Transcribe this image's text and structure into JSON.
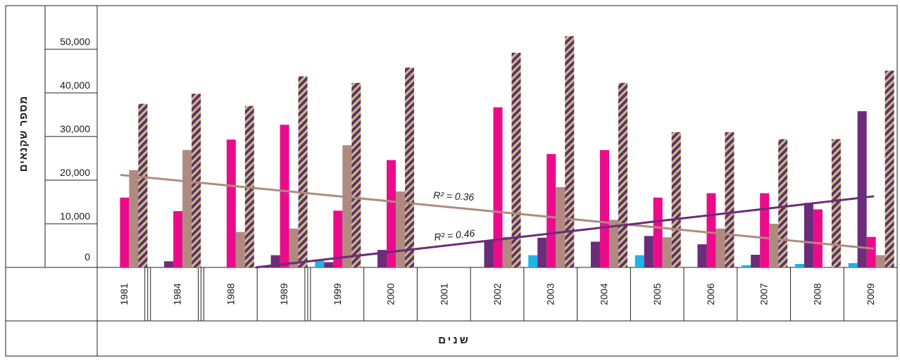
{
  "chart_data": {
    "type": "bar",
    "ylabel": "מספר שקנאים",
    "xlabel": "שנים",
    "y_ticks": [
      "0",
      "10,000",
      "20,000",
      "30,000",
      "40,000",
      "50,000"
    ],
    "ylim": [
      0,
      50000
    ],
    "grid": false,
    "categories": [
      "1981",
      "1984",
      "1988",
      "1989",
      "1999",
      "2000",
      "2001",
      "2002",
      "2003",
      "2004",
      "2005",
      "2006",
      "2007",
      "2008",
      "2009"
    ],
    "series": [
      {
        "color": "#1fb3e6",
        "pattern": "solid",
        "values": [
          0,
          0,
          0,
          0,
          1700,
          0,
          0,
          0,
          2800,
          0,
          2800,
          0,
          500,
          800,
          1000
        ]
      },
      {
        "color": "#6b2c79",
        "pattern": "solid",
        "values": [
          0,
          1400,
          0,
          2800,
          1200,
          4000,
          0,
          6000,
          6800,
          5900,
          7200,
          5300,
          2900,
          14800,
          35800
        ]
      },
      {
        "color": "#ec0b8b",
        "pattern": "solid",
        "values": [
          16000,
          12900,
          29300,
          32700,
          13000,
          24600,
          0,
          36700,
          26000,
          26900,
          16000,
          17000,
          17000,
          13300,
          7000
        ]
      },
      {
        "color": "#b08a80",
        "pattern": "solid",
        "values": [
          22300,
          26900,
          8100,
          8900,
          28000,
          17400,
          0,
          7000,
          18400,
          10900,
          6900,
          8900,
          10000,
          0,
          2800
        ]
      },
      {
        "color": "#7a2470",
        "color2": "#a9d37a",
        "pattern": "hatched",
        "values": [
          37500,
          39800,
          37000,
          43800,
          42300,
          45800,
          0,
          49200,
          53000,
          42300,
          31000,
          31000,
          29400,
          29400,
          45100
        ]
      }
    ],
    "trendlines": [
      {
        "color": "#b08a80",
        "from": [
          "1981",
          21200
        ],
        "to": [
          "2009",
          4300
        ],
        "label": "R² = 0.36"
      },
      {
        "color": "#6b2c79",
        "from": [
          "1989",
          0
        ],
        "to": [
          "2009",
          16300
        ],
        "label": "R² = 0.46"
      }
    ]
  }
}
